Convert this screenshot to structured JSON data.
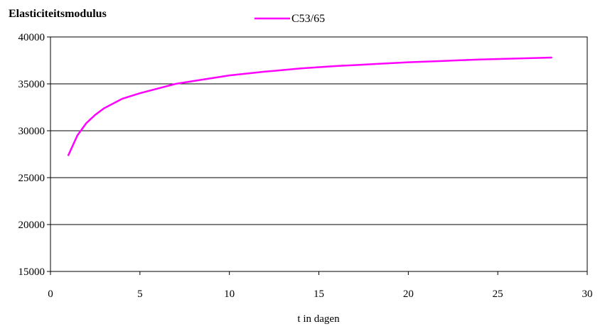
{
  "chart_data": {
    "type": "line",
    "title": "Elasticiteitsmodulus",
    "xlabel": "t in dagen",
    "ylabel": "",
    "xlim": [
      0,
      30
    ],
    "ylim": [
      15000,
      40000
    ],
    "x_ticks": [
      0,
      5,
      10,
      15,
      20,
      25,
      30
    ],
    "y_ticks": [
      15000,
      20000,
      25000,
      30000,
      35000,
      40000
    ],
    "grid": "horizontal",
    "legend_position": "top",
    "series": [
      {
        "name": "C53/65",
        "color": "#ff00ff",
        "x": [
          1,
          1.5,
          2,
          2.5,
          3,
          4,
          5,
          6,
          7,
          8,
          10,
          12,
          14,
          16,
          18,
          20,
          22,
          24,
          26,
          28
        ],
        "y": [
          27400,
          29500,
          30800,
          31700,
          32400,
          33400,
          34000,
          34500,
          35000,
          35300,
          35900,
          36300,
          36650,
          36900,
          37100,
          37300,
          37450,
          37600,
          37700,
          37800
        ]
      }
    ]
  }
}
